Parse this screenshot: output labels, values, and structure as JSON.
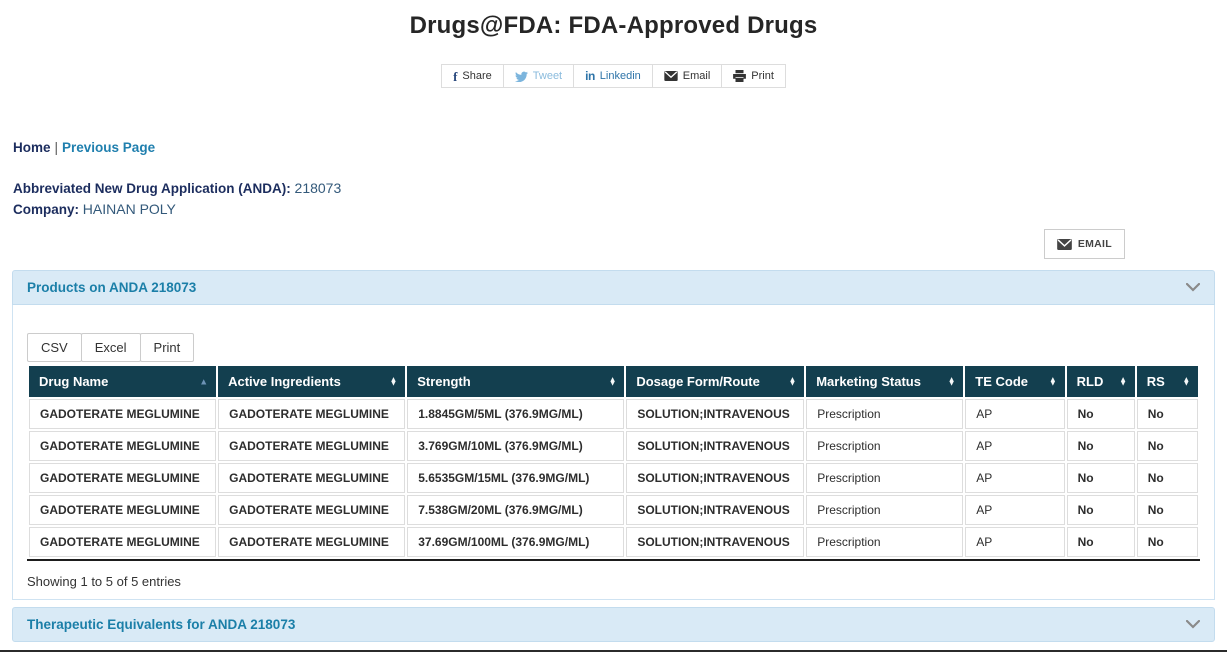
{
  "page": {
    "title": "Drugs@FDA: FDA-Approved Drugs"
  },
  "share_bar": {
    "buttons": [
      {
        "label": "Share",
        "icon": "facebook-icon"
      },
      {
        "label": "Tweet",
        "icon": "twitter-icon"
      },
      {
        "label": "Linkedin",
        "icon": "linkedin-icon"
      },
      {
        "label": "Email",
        "icon": "envelope-icon"
      },
      {
        "label": "Print",
        "icon": "printer-icon"
      }
    ]
  },
  "breadcrumb": {
    "home": "Home",
    "separator": "|",
    "previous": "Previous Page"
  },
  "application": {
    "anda_label": "Abbreviated New Drug Application (ANDA):",
    "anda_value": "218073",
    "company_label": "Company:",
    "company_value": "HAINAN POLY"
  },
  "email_button": {
    "label": "EMAIL"
  },
  "products_panel": {
    "title": "Products on ANDA 218073",
    "export_buttons": {
      "csv": "CSV",
      "excel": "Excel",
      "print": "Print"
    },
    "table": {
      "columns": [
        "Drug Name",
        "Active Ingredients",
        "Strength",
        "Dosage Form/Route",
        "Marketing Status",
        "TE Code",
        "RLD",
        "RS"
      ],
      "sorted_column": "Drug Name",
      "sort_direction": "ascending",
      "rows": [
        [
          "GADOTERATE MEGLUMINE",
          "GADOTERATE MEGLUMINE",
          "1.8845GM/5ML (376.9MG/ML)",
          "SOLUTION;INTRAVENOUS",
          "Prescription",
          "AP",
          "No",
          "No"
        ],
        [
          "GADOTERATE MEGLUMINE",
          "GADOTERATE MEGLUMINE",
          "3.769GM/10ML (376.9MG/ML)",
          "SOLUTION;INTRAVENOUS",
          "Prescription",
          "AP",
          "No",
          "No"
        ],
        [
          "GADOTERATE MEGLUMINE",
          "GADOTERATE MEGLUMINE",
          "5.6535GM/15ML (376.9MG/ML)",
          "SOLUTION;INTRAVENOUS",
          "Prescription",
          "AP",
          "No",
          "No"
        ],
        [
          "GADOTERATE MEGLUMINE",
          "GADOTERATE MEGLUMINE",
          "7.538GM/20ML (376.9MG/ML)",
          "SOLUTION;INTRAVENOUS",
          "Prescription",
          "AP",
          "No",
          "No"
        ],
        [
          "GADOTERATE MEGLUMINE",
          "GADOTERATE MEGLUMINE",
          "37.69GM/100ML (376.9MG/ML)",
          "SOLUTION;INTRAVENOUS",
          "Prescription",
          "AP",
          "No",
          "No"
        ]
      ]
    },
    "footer_text": "Showing 1 to 5 of 5 entries"
  },
  "te_panel": {
    "title": "Therapeutic Equivalents for ANDA 218073"
  },
  "colors": {
    "table_header_bg": "#133f4f",
    "panel_header_bg": "#d9eaf6",
    "panel_title_text": "#1b7fa8",
    "link_navy": "#1c2d5e",
    "link_teal": "#1f7fae",
    "tweet_blue": "#7cb5dd",
    "linkedin_blue": "#2e74a8"
  }
}
